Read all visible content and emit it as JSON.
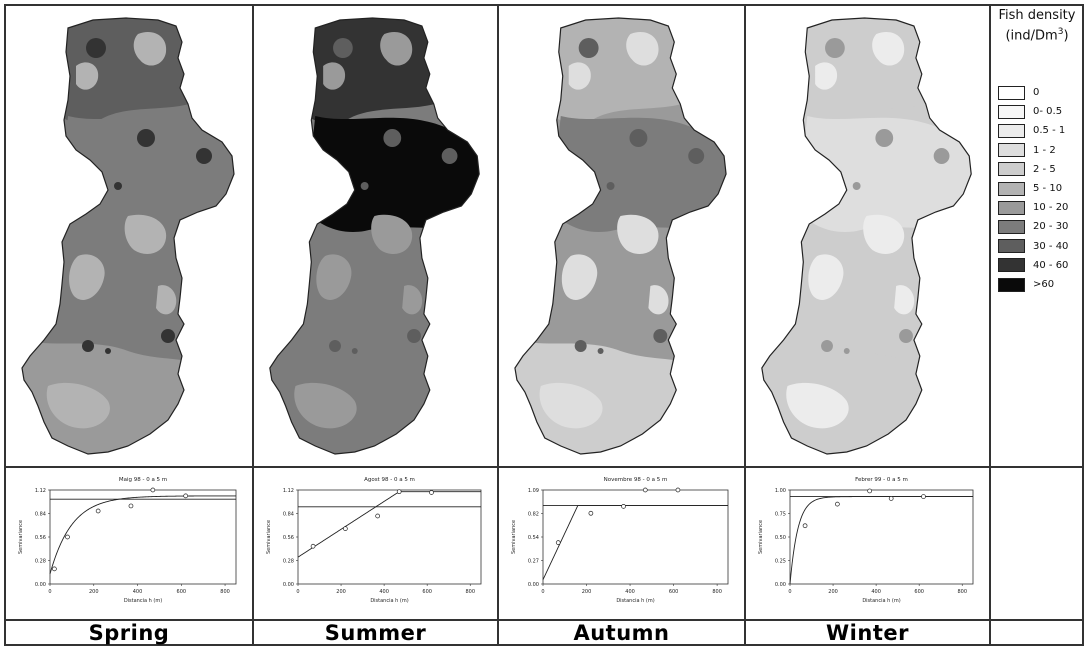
{
  "figure": {
    "legend": {
      "title_line1": "Fish density",
      "title_unit_prefix": "(ind/Dm",
      "title_unit_sup": "3",
      "title_unit_suffix": ")",
      "classes": [
        {
          "label": "0",
          "color": "#ffffff"
        },
        {
          "label": "0- 0.5",
          "color": "#f7f7f7"
        },
        {
          "label": "0.5 - 1",
          "color": "#ececec"
        },
        {
          "label": "1 - 2",
          "color": "#dedede"
        },
        {
          "label": "2 - 5",
          "color": "#cdcdcd"
        },
        {
          "label": "5 - 10",
          "color": "#b3b3b3"
        },
        {
          "label": "10 - 20",
          "color": "#9a9a9a"
        },
        {
          "label": "20 - 30",
          "color": "#7c7c7c"
        },
        {
          "label": "30 - 40",
          "color": "#5e5e5e"
        },
        {
          "label": "40 - 60",
          "color": "#333333"
        },
        {
          "label": ">60",
          "color": "#0a0a0a"
        }
      ]
    },
    "maps": [
      {
        "season": "Spring",
        "base": "#7c7c7c",
        "north": "#5e5e5e",
        "mid": "#7c7c7c",
        "south": "#9a9a9a",
        "patch": "#b3b3b3",
        "spot": "#333333"
      },
      {
        "season": "Summer",
        "base": "#7c7c7c",
        "north": "#333333",
        "mid": "#0a0a0a",
        "south": "#7c7c7c",
        "patch": "#9a9a9a",
        "spot": "#5e5e5e"
      },
      {
        "season": "Autumn",
        "base": "#9a9a9a",
        "north": "#b3b3b3",
        "mid": "#7c7c7c",
        "south": "#cdcdcd",
        "patch": "#dedede",
        "spot": "#5e5e5e"
      },
      {
        "season": "Winter",
        "base": "#cdcdcd",
        "north": "#cdcdcd",
        "mid": "#dedede",
        "south": "#cdcdcd",
        "patch": "#ececec",
        "spot": "#9a9a9a"
      }
    ],
    "variograms": [
      {
        "title": "Maig 98 - 0 a 5 m",
        "ylabel": "Semivariance",
        "xlabel": "Distancia h (m)",
        "xticks": [
          "0",
          "200",
          "400",
          "600",
          "800"
        ],
        "yticks": [
          "0.00",
          "0.28",
          "0.56",
          "0.84",
          "1.12"
        ],
        "xlim": [
          0,
          850
        ],
        "ylim": [
          0,
          1.12
        ],
        "sill_line": 1.01,
        "points": [
          [
            20,
            0.18
          ],
          [
            80,
            0.56
          ],
          [
            220,
            0.87
          ],
          [
            370,
            0.93
          ],
          [
            470,
            1.12
          ],
          [
            620,
            1.05
          ]
        ],
        "model": {
          "type": "exponential",
          "nugget": 0.12,
          "sill": 1.05,
          "range": 300
        }
      },
      {
        "title": "Agost 98 - 0 a 5 m",
        "ylabel": "Semivariance",
        "xlabel": "Distancia h (m)",
        "xticks": [
          "0",
          "200",
          "400",
          "600",
          "800"
        ],
        "yticks": [
          "0.00",
          "0.28",
          "0.56",
          "0.84",
          "1.12"
        ],
        "xlim": [
          0,
          850
        ],
        "ylim": [
          0,
          1.12
        ],
        "sill_line": 0.92,
        "points": [
          [
            70,
            0.45
          ],
          [
            220,
            0.66
          ],
          [
            370,
            0.81
          ],
          [
            470,
            1.1
          ],
          [
            620,
            1.09
          ]
        ],
        "model": {
          "type": "linear-sill",
          "nugget": 0.32,
          "sill": 1.1,
          "range": 470
        }
      },
      {
        "title": "Novembre 98 - 0 a 5 m",
        "ylabel": "Semivariance",
        "xlabel": "Distancia h (m)",
        "xticks": [
          "0",
          "200",
          "400",
          "600",
          "800"
        ],
        "yticks": [
          "0.00",
          "0.27",
          "0.54",
          "0.82",
          "1.09"
        ],
        "xlim": [
          0,
          850
        ],
        "ylim": [
          0,
          1.09
        ],
        "sill_line": 0.91,
        "points": [
          [
            70,
            0.48
          ],
          [
            220,
            0.82
          ],
          [
            370,
            0.9
          ],
          [
            470,
            1.09
          ],
          [
            620,
            1.09
          ]
        ],
        "model": {
          "type": "linear-sill",
          "nugget": 0.05,
          "sill": 0.91,
          "range": 160
        }
      },
      {
        "title": "Febrer 99 - 0 a 5 m",
        "ylabel": "Semivariance",
        "xlabel": "Distancia h (m)",
        "xticks": [
          "0",
          "200",
          "400",
          "600",
          "800"
        ],
        "yticks": [
          "0.00",
          "0.25",
          "0.50",
          "0.75",
          "1.00"
        ],
        "xlim": [
          0,
          850
        ],
        "ylim": [
          0,
          1.0
        ],
        "sill_line": 0.93,
        "points": [
          [
            70,
            0.62
          ],
          [
            220,
            0.85
          ],
          [
            370,
            0.99
          ],
          [
            470,
            0.91
          ],
          [
            620,
            0.93
          ]
        ],
        "model": {
          "type": "exponential",
          "nugget": 0.0,
          "sill": 0.93,
          "range": 110
        }
      }
    ],
    "seasons": [
      "Spring",
      "Summer",
      "Autumn",
      "Winter"
    ]
  }
}
